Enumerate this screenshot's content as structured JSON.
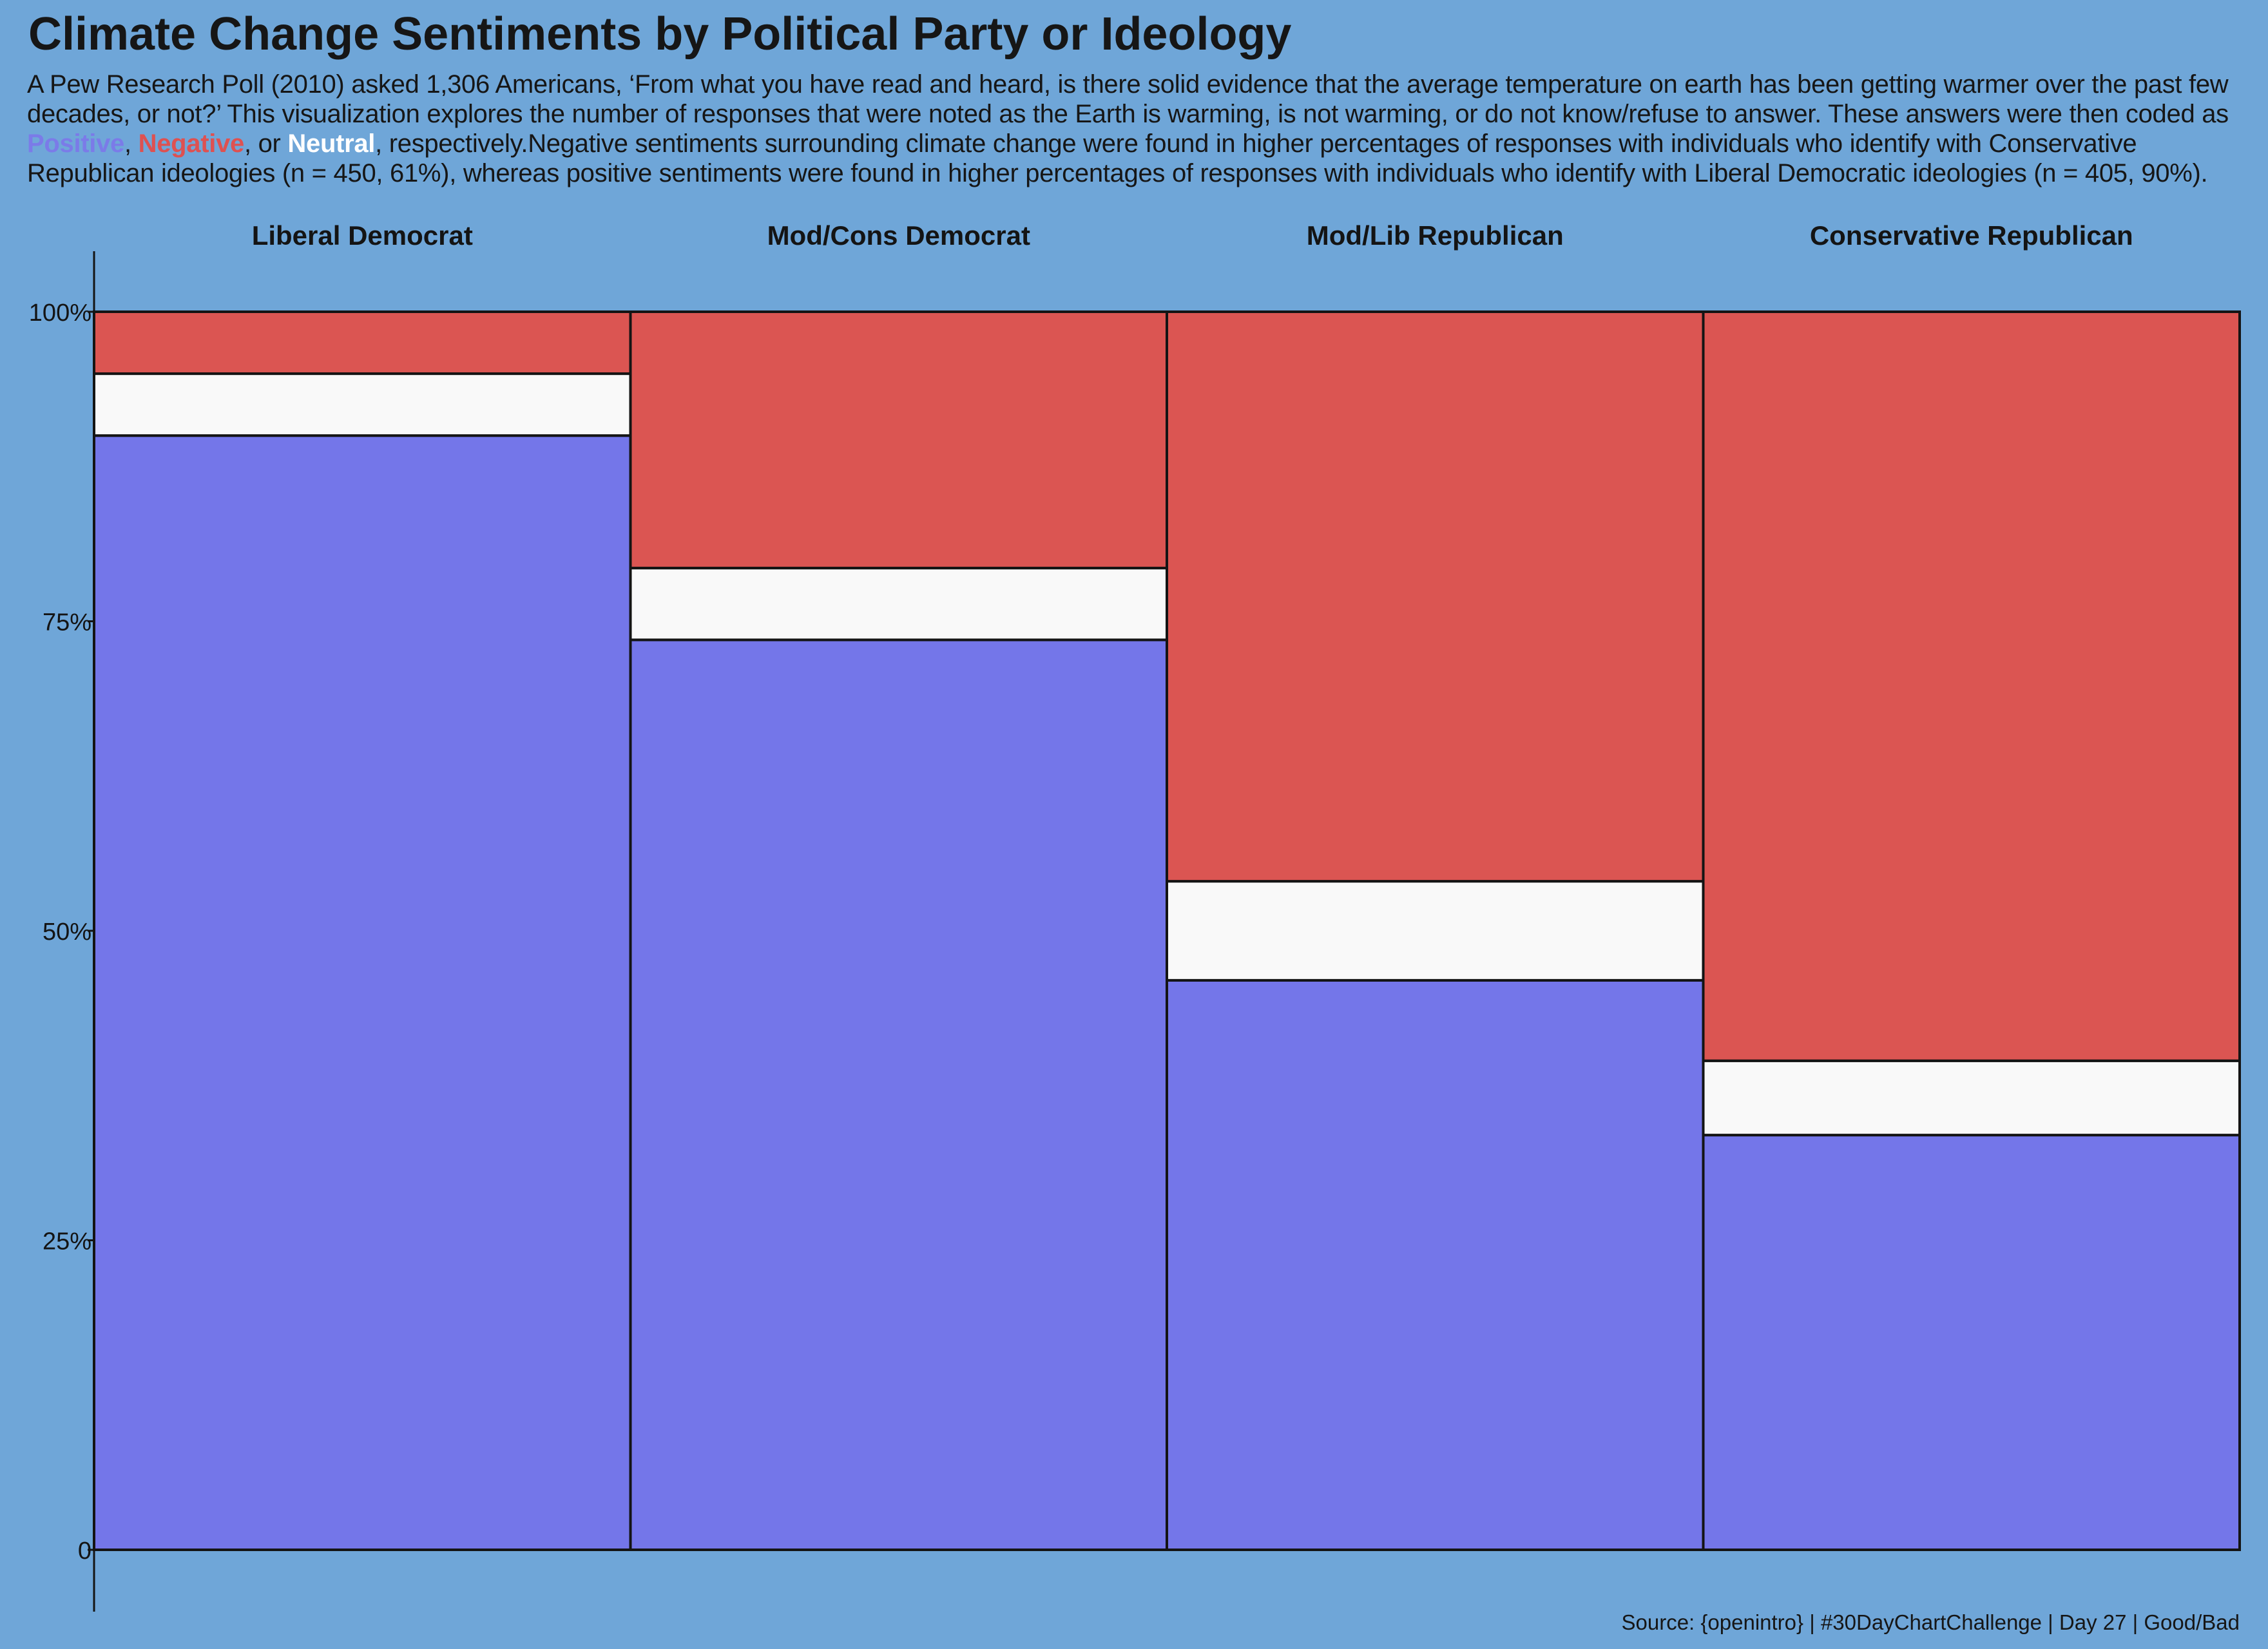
{
  "title": "Climate Change Sentiments by Political Party or Ideology",
  "subtitle": {
    "p1": "A Pew Research Poll (2010) asked 1,306 Americans, ‘From what you have read and heard, is there solid evidence that the average temperature on earth has been getting warmer over the past few decades, or not?’ This visualization explores the number of responses that were noted as the Earth is warming, is not warming, or do not know/refuse to answer. These answers were then coded as ",
    "positive": "Positive",
    "sep1": ", ",
    "negative": "Negative",
    "sep2": ", or ",
    "neutral": "Neutral",
    "p2": ", respectively.Negative sentiments surrounding climate change were found in higher percentages of responses with individuals who identify with Conservative Republican ideologies (n = 450, 61%), whereas positive sentiments were found in higher percentages of responses with individuals who identify with Liberal Democratic ideologies (n = 405, 90%)."
  },
  "caption": "Source: {openintro} | #30DayChartChallenge | Day 27 | Good/Bad",
  "colors": {
    "positive": "#7476e9",
    "neutral": "#f9f9f9",
    "negative": "#db5552",
    "background": "#6fa6d8",
    "outline": "#141414"
  },
  "chart_data": {
    "type": "bar",
    "stacked": true,
    "percent": true,
    "categories": [
      "Liberal Democrat",
      "Mod/Cons Democrat",
      "Mod/Lib Republican",
      "Conservative Republican"
    ],
    "series": [
      {
        "name": "Positive",
        "values": [
          0.9,
          0.735,
          0.46,
          0.335
        ]
      },
      {
        "name": "Neutral",
        "values": [
          0.05,
          0.058,
          0.08,
          0.06
        ]
      },
      {
        "name": "Negative",
        "values": [
          0.05,
          0.207,
          0.46,
          0.605
        ]
      }
    ],
    "ylim": [
      0,
      1
    ],
    "y_ticks": [
      {
        "value": 0,
        "label": "0"
      },
      {
        "value": 0.25,
        "label": "25%"
      },
      {
        "value": 0.5,
        "label": "50%"
      },
      {
        "value": 0.75,
        "label": "75%"
      },
      {
        "value": 1,
        "label": "100%"
      }
    ],
    "legend": "none",
    "grid": false
  }
}
